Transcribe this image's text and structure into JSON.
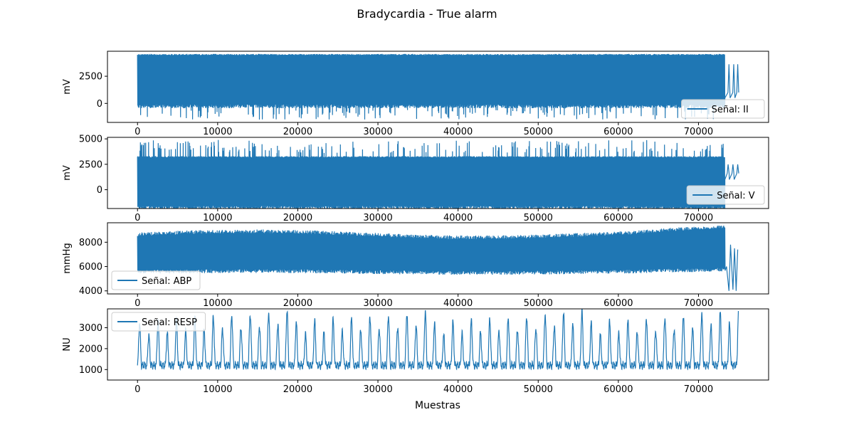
{
  "figure": {
    "title": "Bradycardia - True alarm",
    "xlabel": "Muestras"
  },
  "colors": {
    "series": "#1f77b4",
    "axes": "#000000",
    "legend_border": "#cccccc"
  },
  "chart_data": [
    {
      "type": "line",
      "ylabel": "mV",
      "legend": "Señal: II",
      "legend_loc": "lower-right",
      "xlim": [
        -3750,
        78750
      ],
      "ylim": [
        -1750,
        4800
      ],
      "xticks": [
        0,
        10000,
        20000,
        30000,
        40000,
        50000,
        60000,
        70000
      ],
      "yticks": [
        0,
        2500
      ],
      "grid": false,
      "signal": {
        "n_samples": 75000,
        "kind": "ecg",
        "baseline": 500,
        "band_top": 4550,
        "band_bottom": -100,
        "spike_min": -1500,
        "dense_end": 73300,
        "tail_pulses": [
          73800,
          74400,
          74900
        ],
        "tail_low": 1000,
        "tail_high": 3600
      }
    },
    {
      "type": "line",
      "ylabel": "mV",
      "legend": "Señal: V",
      "legend_loc": "lower-right",
      "xlim": [
        -3750,
        78750
      ],
      "ylim": [
        -1850,
        5150
      ],
      "xticks": [
        0,
        10000,
        20000,
        30000,
        40000,
        50000,
        60000,
        70000
      ],
      "yticks": [
        0,
        2500,
        5000
      ],
      "grid": false,
      "signal": {
        "n_samples": 75000,
        "kind": "ecg",
        "baseline": 1000,
        "band_top": 3300,
        "band_bottom": -1600,
        "spike_max": 4900,
        "dense_end": 73300,
        "tail_pulses": [
          73700,
          74300,
          74900
        ],
        "tail_low": 1600,
        "tail_high": 2500
      }
    },
    {
      "type": "line",
      "ylabel": "mmHg",
      "legend": "Señal: ABP",
      "legend_loc": "lower-left",
      "xlim": [
        -3750,
        78750
      ],
      "ylim": [
        3750,
        9600
      ],
      "xticks": [
        0,
        10000,
        20000,
        30000,
        40000,
        50000,
        60000,
        70000
      ],
      "yticks": [
        4000,
        6000,
        8000
      ],
      "grid": false,
      "signal": {
        "n_samples": 75000,
        "kind": "abp",
        "systolic": 8800,
        "diastolic": 5400,
        "dense_end": 73300,
        "tail_low": 4000,
        "tail_high": 7800
      }
    },
    {
      "type": "line",
      "ylabel": "NU",
      "legend": "Señal: RESP",
      "legend_loc": "upper-left",
      "xlim": [
        -3750,
        78750
      ],
      "ylim": [
        500,
        3900
      ],
      "xticks": [
        0,
        10000,
        20000,
        30000,
        40000,
        50000,
        60000,
        70000
      ],
      "yticks": [
        1000,
        2000,
        3000
      ],
      "grid": false,
      "signal": {
        "n_samples": 75000,
        "kind": "resp",
        "baseline": 1200,
        "peak_low": 2600,
        "peak_high": 3800,
        "breath_period": 1150
      }
    }
  ]
}
